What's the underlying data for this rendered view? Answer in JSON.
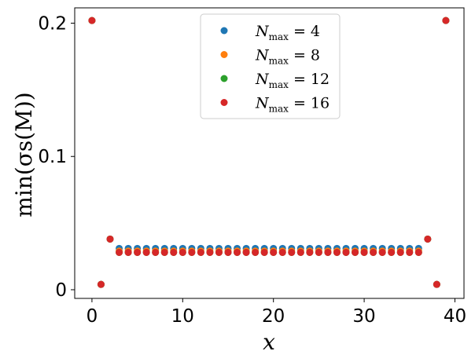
{
  "chart_data": {
    "type": "scatter",
    "xlabel": "x",
    "ylabel": "min(σs(M))",
    "xlim": [
      -1.9,
      41
    ],
    "ylim": [
      -0.0065,
      0.2115
    ],
    "xticks": [
      0,
      10,
      20,
      30,
      40
    ],
    "yticks": [
      0,
      0.1,
      0.2
    ],
    "ytick_labels": [
      "0",
      "0.1",
      "0.2"
    ],
    "legend_position": "upper-center",
    "grid": false,
    "series": [
      {
        "name": "Nmax = 4",
        "legend_parts": {
          "base": "N",
          "sub": "max",
          "rest": " = 4"
        },
        "color": "#1f77b4",
        "x": [
          0,
          1,
          2,
          3,
          4,
          5,
          6,
          7,
          8,
          9,
          10,
          11,
          12,
          13,
          14,
          15,
          16,
          17,
          18,
          19,
          20,
          21,
          22,
          23,
          24,
          25,
          26,
          27,
          28,
          29,
          30,
          31,
          32,
          33,
          34,
          35,
          36,
          37,
          38,
          39
        ],
        "y": [
          0.202,
          0.004,
          0.038,
          0.031,
          0.031,
          0.031,
          0.031,
          0.031,
          0.031,
          0.031,
          0.031,
          0.031,
          0.031,
          0.031,
          0.031,
          0.031,
          0.031,
          0.031,
          0.031,
          0.031,
          0.031,
          0.031,
          0.031,
          0.031,
          0.031,
          0.031,
          0.031,
          0.031,
          0.031,
          0.031,
          0.031,
          0.031,
          0.031,
          0.031,
          0.031,
          0.031,
          0.031,
          0.038,
          0.004,
          0.202
        ]
      },
      {
        "name": "Nmax = 8",
        "legend_parts": {
          "base": "N",
          "sub": "max",
          "rest": " = 8"
        },
        "color": "#ff7f0e",
        "x": [
          0,
          1,
          2,
          3,
          4,
          5,
          6,
          7,
          8,
          9,
          10,
          11,
          12,
          13,
          14,
          15,
          16,
          17,
          18,
          19,
          20,
          21,
          22,
          23,
          24,
          25,
          26,
          27,
          28,
          29,
          30,
          31,
          32,
          33,
          34,
          35,
          36,
          37,
          38,
          39
        ],
        "y": [
          0.202,
          0.004,
          0.038,
          0.029,
          0.029,
          0.029,
          0.029,
          0.029,
          0.029,
          0.029,
          0.029,
          0.029,
          0.029,
          0.029,
          0.029,
          0.029,
          0.029,
          0.029,
          0.029,
          0.029,
          0.029,
          0.029,
          0.029,
          0.029,
          0.029,
          0.029,
          0.029,
          0.029,
          0.029,
          0.029,
          0.029,
          0.029,
          0.029,
          0.029,
          0.029,
          0.029,
          0.029,
          0.038,
          0.004,
          0.202
        ]
      },
      {
        "name": "Nmax = 12",
        "legend_parts": {
          "base": "N",
          "sub": "max",
          "rest": " = 12"
        },
        "color": "#2ca02c",
        "x": [
          0,
          1,
          2,
          3,
          4,
          5,
          6,
          7,
          8,
          9,
          10,
          11,
          12,
          13,
          14,
          15,
          16,
          17,
          18,
          19,
          20,
          21,
          22,
          23,
          24,
          25,
          26,
          27,
          28,
          29,
          30,
          31,
          32,
          33,
          34,
          35,
          36,
          37,
          38,
          39
        ],
        "y": [
          0.202,
          0.004,
          0.038,
          0.028,
          0.028,
          0.028,
          0.028,
          0.028,
          0.028,
          0.028,
          0.028,
          0.028,
          0.028,
          0.028,
          0.028,
          0.028,
          0.028,
          0.028,
          0.028,
          0.028,
          0.028,
          0.028,
          0.028,
          0.028,
          0.028,
          0.028,
          0.028,
          0.028,
          0.028,
          0.028,
          0.028,
          0.028,
          0.028,
          0.028,
          0.028,
          0.028,
          0.028,
          0.038,
          0.004,
          0.202
        ]
      },
      {
        "name": "Nmax = 16",
        "legend_parts": {
          "base": "N",
          "sub": "max",
          "rest": " = 16"
        },
        "color": "#d62728",
        "x": [
          0,
          1,
          2,
          3,
          4,
          5,
          6,
          7,
          8,
          9,
          10,
          11,
          12,
          13,
          14,
          15,
          16,
          17,
          18,
          19,
          20,
          21,
          22,
          23,
          24,
          25,
          26,
          27,
          28,
          29,
          30,
          31,
          32,
          33,
          34,
          35,
          36,
          37,
          38,
          39
        ],
        "y": [
          0.202,
          0.004,
          0.038,
          0.028,
          0.028,
          0.028,
          0.028,
          0.028,
          0.028,
          0.028,
          0.028,
          0.028,
          0.028,
          0.028,
          0.028,
          0.028,
          0.028,
          0.028,
          0.028,
          0.028,
          0.028,
          0.028,
          0.028,
          0.028,
          0.028,
          0.028,
          0.028,
          0.028,
          0.028,
          0.028,
          0.028,
          0.028,
          0.028,
          0.028,
          0.028,
          0.028,
          0.028,
          0.038,
          0.004,
          0.202
        ]
      }
    ]
  }
}
